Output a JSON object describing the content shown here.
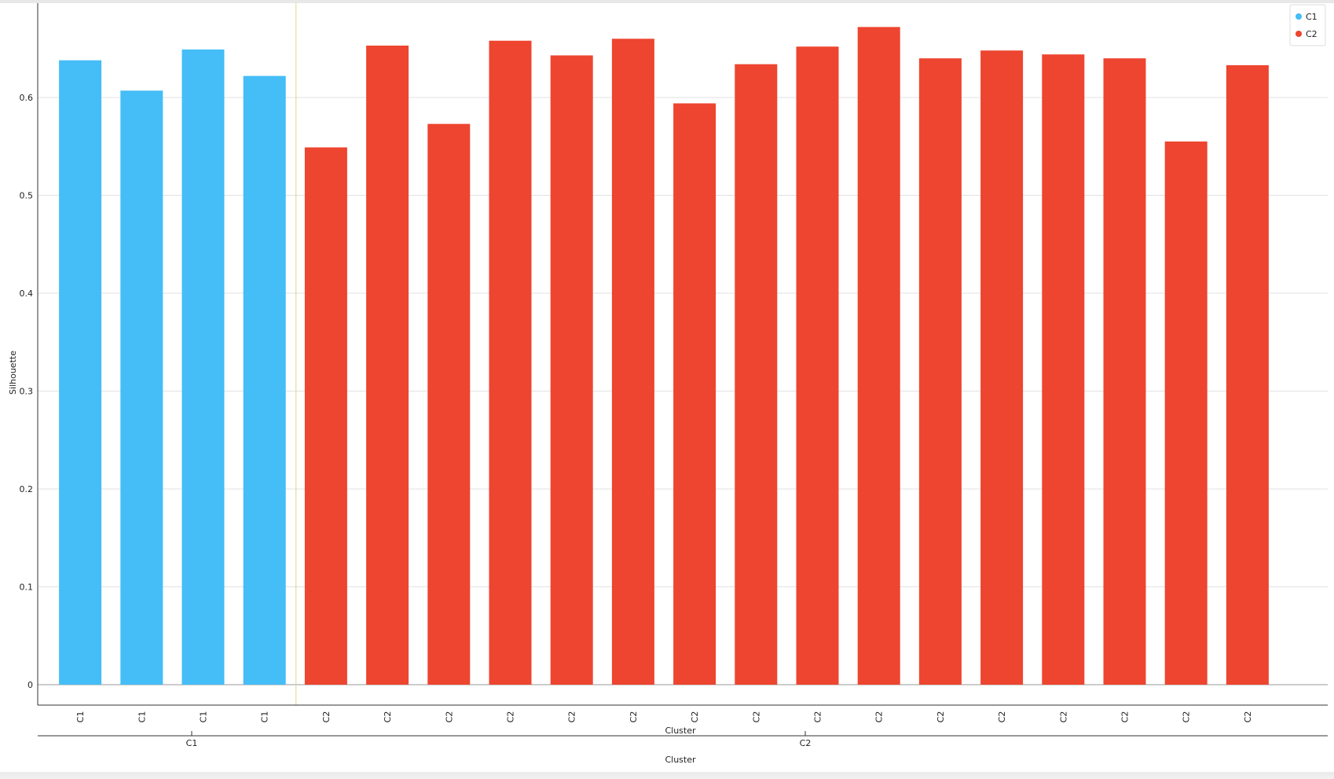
{
  "chart_data": {
    "type": "bar",
    "categories": [
      "C1",
      "C1",
      "C1",
      "C1",
      "C2",
      "C2",
      "C2",
      "C2",
      "C2",
      "C2",
      "C2",
      "C2",
      "C2",
      "C2",
      "C2",
      "C2",
      "C2",
      "C2",
      "C2",
      "C2"
    ],
    "groups": [
      "C1",
      "C1",
      "C1",
      "C1",
      "C2",
      "C2",
      "C2",
      "C2",
      "C2",
      "C2",
      "C2",
      "C2",
      "C2",
      "C2",
      "C2",
      "C2",
      "C2",
      "C2",
      "C2",
      "C2"
    ],
    "values": [
      0.638,
      0.607,
      0.649,
      0.622,
      0.549,
      0.653,
      0.573,
      0.658,
      0.643,
      0.66,
      0.594,
      0.634,
      0.652,
      0.672,
      0.64,
      0.648,
      0.644,
      0.64,
      0.555,
      0.633
    ],
    "ylabel": "Silhouette",
    "xlabel": "Cluster",
    "group_axis_label": "Cluster",
    "group_labels": [
      "C1",
      "C2"
    ],
    "ylim": [
      -0.022,
      0.695
    ],
    "yticks": [
      0,
      0.1,
      0.2,
      0.3,
      0.4,
      0.5,
      0.6
    ],
    "ytick_labels": [
      "0",
      "0.1",
      "0.2",
      "0.3",
      "0.4",
      "0.5",
      "0.6"
    ],
    "legend": [
      {
        "label": "C1",
        "color": "#45bdf7"
      },
      {
        "label": "C2",
        "color": "#ed4530"
      }
    ],
    "legend_position": "top-right",
    "grid": true
  },
  "colors": {
    "C1": "#45bdf7",
    "C2": "#ed4530",
    "divider": "#d8d890",
    "grid": "#e2e2e2",
    "axis": "#333333"
  }
}
